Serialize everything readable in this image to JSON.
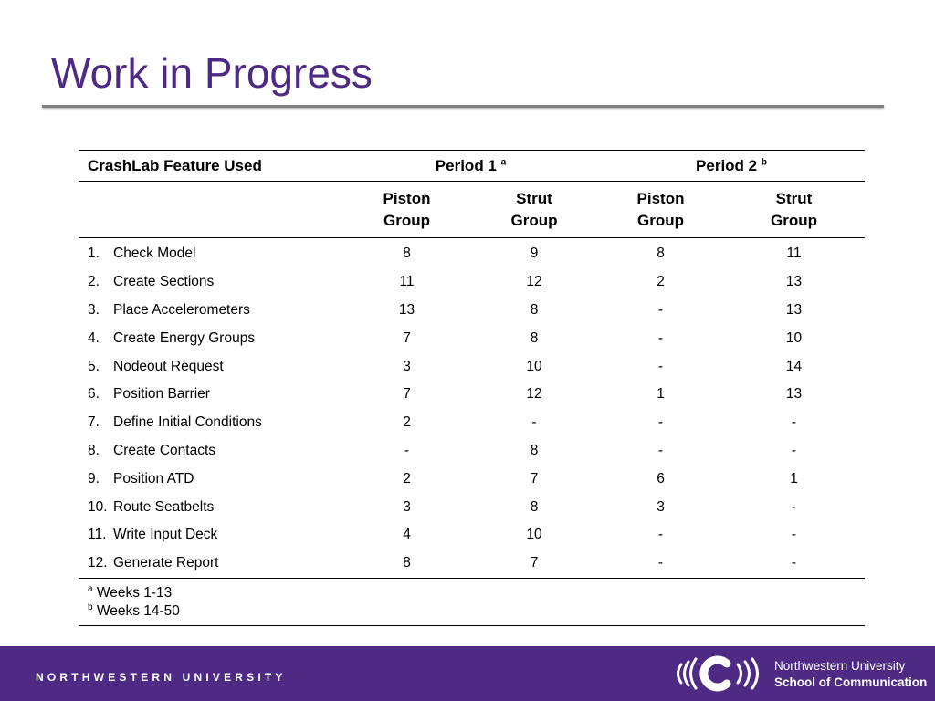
{
  "slide": {
    "title": "Work in Progress"
  },
  "table": {
    "header": {
      "feature": "CrashLab Feature Used",
      "period1": "Period 1",
      "period1_note": "a",
      "period2": "Period 2",
      "period2_note": "b"
    },
    "subheaders": {
      "p1_piston": [
        "Piston",
        "Group"
      ],
      "p1_strut": [
        "Strut",
        "Group"
      ],
      "p2_piston": [
        "Piston",
        "Group"
      ],
      "p2_strut": [
        "Strut",
        "Group"
      ]
    },
    "rows": [
      {
        "num": "1.",
        "feature": "Check Model",
        "p1_piston": "8",
        "p1_strut": "9",
        "p2_piston": "8",
        "p2_strut": "11"
      },
      {
        "num": "2.",
        "feature": "Create Sections",
        "p1_piston": "11",
        "p1_strut": "12",
        "p2_piston": "2",
        "p2_strut": "13"
      },
      {
        "num": "3.",
        "feature": "Place Accelerometers",
        "p1_piston": "13",
        "p1_strut": "8",
        "p2_piston": "-",
        "p2_strut": "13"
      },
      {
        "num": "4.",
        "feature": "Create Energy Groups",
        "p1_piston": "7",
        "p1_strut": "8",
        "p2_piston": "-",
        "p2_strut": "10"
      },
      {
        "num": "5.",
        "feature": "Nodeout Request",
        "p1_piston": "3",
        "p1_strut": "10",
        "p2_piston": "-",
        "p2_strut": "14"
      },
      {
        "num": "6.",
        "feature": "Position Barrier",
        "p1_piston": "7",
        "p1_strut": "12",
        "p2_piston": "1",
        "p2_strut": "13"
      },
      {
        "num": "7.",
        "feature": "Define Initial Conditions",
        "p1_piston": "2",
        "p1_strut": "-",
        "p2_piston": "-",
        "p2_strut": "-"
      },
      {
        "num": "8.",
        "feature": "Create Contacts",
        "p1_piston": "-",
        "p1_strut": "8",
        "p2_piston": "-",
        "p2_strut": "-"
      },
      {
        "num": "9.",
        "feature": "Position ATD",
        "p1_piston": "2",
        "p1_strut": "7",
        "p2_piston": "6",
        "p2_strut": "1"
      },
      {
        "num": "10.",
        "feature": "Route Seatbelts",
        "p1_piston": "3",
        "p1_strut": "8",
        "p2_piston": "3",
        "p2_strut": "-"
      },
      {
        "num": "11.",
        "feature": "Write Input Deck",
        "p1_piston": "4",
        "p1_strut": "10",
        "p2_piston": "-",
        "p2_strut": "-"
      },
      {
        "num": "12.",
        "feature": "Generate Report",
        "p1_piston": "8",
        "p1_strut": "7",
        "p2_piston": "-",
        "p2_strut": "-"
      }
    ],
    "notes": [
      {
        "mark": "a",
        "text": "Weeks 1-13"
      },
      {
        "mark": "b",
        "text": "Weeks 14-50"
      }
    ]
  },
  "footer": {
    "university": "NORTHWESTERN UNIVERSITY",
    "school_line1": "Northwestern University",
    "school_line2": "School of Communication"
  },
  "colors": {
    "brand_purple": "#4e2a84",
    "rule_gray": "#7f7f7f"
  }
}
